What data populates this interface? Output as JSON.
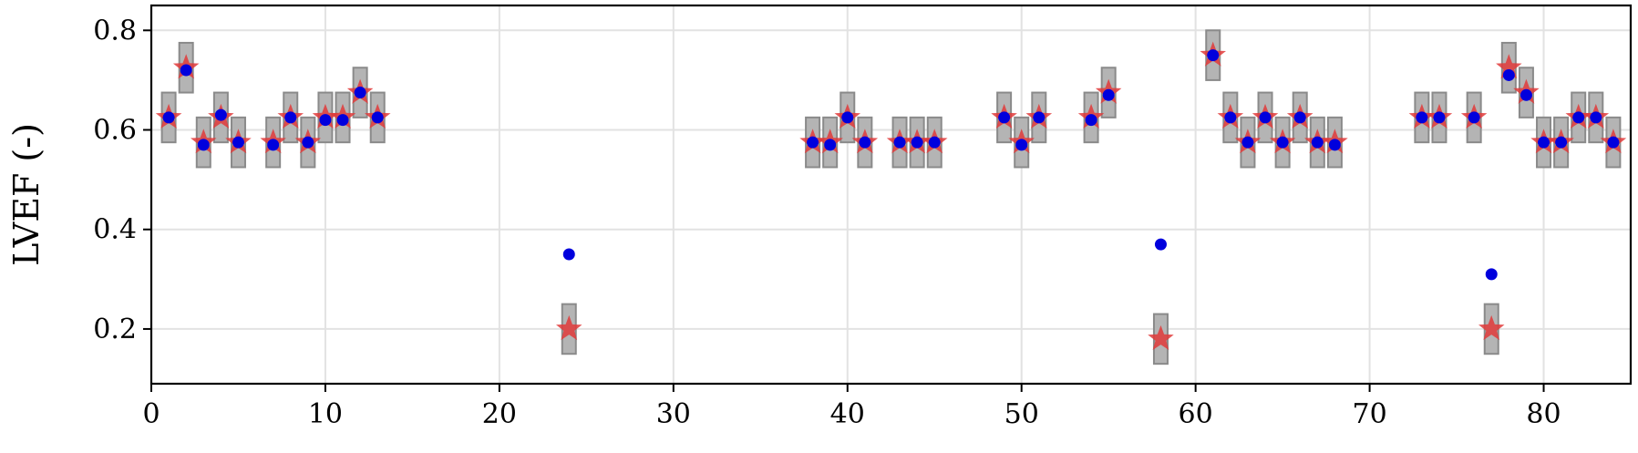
{
  "chart_data": {
    "type": "scatter",
    "title": "",
    "xlabel": "",
    "ylabel": "LVEF (-)",
    "xlim": [
      0,
      85
    ],
    "ylim": [
      0.09,
      0.85
    ],
    "xticks": [
      0,
      10,
      20,
      30,
      40,
      50,
      60,
      70,
      80
    ],
    "yticks": [
      0.2,
      0.4,
      0.6,
      0.8
    ],
    "xtick_labels": [
      "0",
      "10",
      "20",
      "30",
      "40",
      "50",
      "60",
      "70",
      "80"
    ],
    "ytick_labels": [
      "0.2",
      "0.4",
      "0.6",
      "0.8"
    ],
    "grid": true,
    "band_halfwidth": 0.05,
    "series": [
      {
        "marker": "star",
        "color": "#e03a3a",
        "x": [
          1,
          2,
          3,
          4,
          5,
          7,
          8,
          9,
          10,
          11,
          12,
          13,
          24,
          38,
          39,
          40,
          41,
          43,
          44,
          45,
          49,
          50,
          51,
          54,
          55,
          58,
          61,
          62,
          63,
          64,
          65,
          66,
          67,
          68,
          73,
          74,
          76,
          77,
          78,
          79,
          80,
          81,
          82,
          83,
          84
        ],
        "y": [
          0.625,
          0.725,
          0.575,
          0.625,
          0.575,
          0.575,
          0.625,
          0.575,
          0.625,
          0.625,
          0.675,
          0.625,
          0.2,
          0.575,
          0.575,
          0.625,
          0.575,
          0.575,
          0.575,
          0.575,
          0.625,
          0.575,
          0.625,
          0.625,
          0.675,
          0.18,
          0.75,
          0.625,
          0.575,
          0.625,
          0.575,
          0.625,
          0.575,
          0.575,
          0.625,
          0.625,
          0.625,
          0.2,
          0.725,
          0.675,
          0.575,
          0.575,
          0.625,
          0.625,
          0.575
        ]
      },
      {
        "marker": "circle",
        "color": "#0000dd",
        "x": [
          1,
          2,
          3,
          4,
          5,
          7,
          8,
          9,
          10,
          11,
          12,
          13,
          24,
          38,
          39,
          40,
          41,
          43,
          44,
          45,
          49,
          50,
          51,
          54,
          55,
          58,
          61,
          62,
          63,
          64,
          65,
          66,
          67,
          68,
          73,
          74,
          76,
          77,
          78,
          79,
          80,
          81,
          82,
          83,
          84
        ],
        "y": [
          0.625,
          0.72,
          0.57,
          0.63,
          0.575,
          0.57,
          0.625,
          0.575,
          0.62,
          0.62,
          0.675,
          0.625,
          0.35,
          0.575,
          0.57,
          0.625,
          0.575,
          0.575,
          0.575,
          0.575,
          0.625,
          0.57,
          0.625,
          0.62,
          0.67,
          0.37,
          0.75,
          0.625,
          0.575,
          0.625,
          0.575,
          0.625,
          0.575,
          0.57,
          0.625,
          0.625,
          0.625,
          0.31,
          0.71,
          0.67,
          0.575,
          0.575,
          0.625,
          0.625,
          0.575
        ]
      }
    ]
  }
}
